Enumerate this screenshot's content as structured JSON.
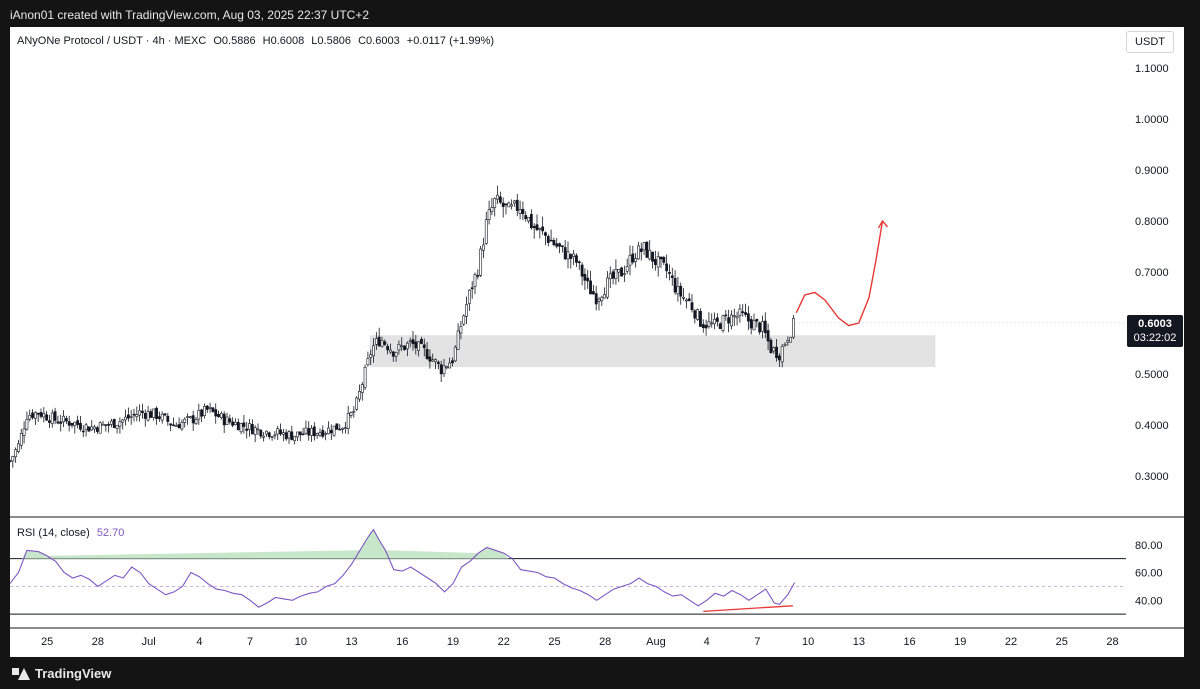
{
  "header": {
    "attribution": "iAnon01 created with TradingView.com, Aug 03, 2025 22:37 UTC+2"
  },
  "legend": {
    "symbol": "ANyONe Protocol / USDT · 4h · MEXC",
    "open": "O0.5886",
    "high": "H0.6008",
    "low": "L0.5806",
    "close": "C0.6003",
    "change": "+0.0117 (+1.99%)"
  },
  "currency": "USDT",
  "price_tag": {
    "price": "0.6003",
    "countdown": "03:22:02"
  },
  "rsi": {
    "label": "RSI (14, close)",
    "value": "52.70"
  },
  "footer": {
    "brand": "TradingView"
  },
  "colors": {
    "candle": "#131722",
    "rsi_line": "#7e57c2",
    "forecast": "#e53935",
    "zone": "#e3e3e3",
    "overbought_fill": "#c8e6c9"
  },
  "chart_data": [
    {
      "type": "candlestick",
      "symbol": "ANyONe Protocol / USDT",
      "timeframe": "4h",
      "y_axis_labels": [
        "1.1000",
        "1.0000",
        "0.9000",
        "0.8000",
        "0.7000",
        "0.6000",
        "0.5000",
        "0.4000",
        "0.3000"
      ],
      "ylim": [
        0.22,
        1.18
      ],
      "x_axis_labels": [
        "25",
        "28",
        "Jul",
        "4",
        "7",
        "10",
        "13",
        "16",
        "19",
        "22",
        "25",
        "28",
        "Aug",
        "4",
        "7",
        "10",
        "13",
        "16",
        "19",
        "22",
        "25",
        "28"
      ],
      "xlim": [
        22.8,
        88.8
      ],
      "close_path": [
        [
          22.8,
          0.33
        ],
        [
          23.3,
          0.36
        ],
        [
          23.8,
          0.42
        ],
        [
          24.5,
          0.425
        ],
        [
          25.5,
          0.41
        ],
        [
          26.5,
          0.405
        ],
        [
          27.5,
          0.395
        ],
        [
          28.5,
          0.4
        ],
        [
          29.5,
          0.41
        ],
        [
          30.5,
          0.425
        ],
        [
          31.5,
          0.42
        ],
        [
          32.5,
          0.4
        ],
        [
          33.5,
          0.41
        ],
        [
          34.5,
          0.43
        ],
        [
          35.5,
          0.41
        ],
        [
          36.5,
          0.4
        ],
        [
          37.5,
          0.39
        ],
        [
          38.5,
          0.385
        ],
        [
          39.5,
          0.38
        ],
        [
          40.5,
          0.385
        ],
        [
          41.5,
          0.39
        ],
        [
          42.5,
          0.4
        ],
        [
          43.2,
          0.43
        ],
        [
          43.7,
          0.49
        ],
        [
          44.2,
          0.55
        ],
        [
          44.7,
          0.57
        ],
        [
          45.5,
          0.545
        ],
        [
          46.5,
          0.56
        ],
        [
          47.5,
          0.54
        ],
        [
          48.3,
          0.51
        ],
        [
          49,
          0.53
        ],
        [
          49.5,
          0.6
        ],
        [
          50,
          0.66
        ],
        [
          50.5,
          0.71
        ],
        [
          51,
          0.8
        ],
        [
          51.5,
          0.84
        ],
        [
          52.3,
          0.82
        ],
        [
          53,
          0.83
        ],
        [
          53.7,
          0.79
        ],
        [
          54.5,
          0.77
        ],
        [
          55.5,
          0.74
        ],
        [
          56.3,
          0.72
        ],
        [
          57,
          0.67
        ],
        [
          57.5,
          0.65
        ],
        [
          58.2,
          0.68
        ],
        [
          59,
          0.7
        ],
        [
          59.7,
          0.735
        ],
        [
          60.3,
          0.745
        ],
        [
          61,
          0.72
        ],
        [
          61.7,
          0.7
        ],
        [
          62.3,
          0.66
        ],
        [
          63,
          0.64
        ],
        [
          63.7,
          0.6
        ],
        [
          64.5,
          0.595
        ],
        [
          65.3,
          0.61
        ],
        [
          66,
          0.615
        ],
        [
          66.7,
          0.6
        ],
        [
          67.3,
          0.59
        ],
        [
          67.8,
          0.55
        ],
        [
          68.3,
          0.54
        ],
        [
          68.8,
          0.575
        ],
        [
          69.2,
          0.6
        ]
      ],
      "support_zone": {
        "y_range": [
          0.515,
          0.575
        ],
        "x_range": [
          44.1,
          77.5
        ]
      },
      "forecast_path": [
        [
          69.3,
          0.62
        ],
        [
          69.8,
          0.655
        ],
        [
          70.4,
          0.66
        ],
        [
          71,
          0.645
        ],
        [
          71.8,
          0.61
        ],
        [
          72.4,
          0.595
        ],
        [
          73,
          0.6
        ],
        [
          73.6,
          0.65
        ],
        [
          74,
          0.72
        ],
        [
          74.4,
          0.8
        ]
      ],
      "last_price": 0.6003
    },
    {
      "type": "line",
      "title": "RSI (14, close)",
      "y_axis_labels": [
        "80.00",
        "60.00",
        "40.00"
      ],
      "ylim": [
        20,
        100
      ],
      "reference_lines": [
        70,
        50,
        30
      ],
      "series": [
        {
          "name": "RSI (14, close)",
          "points": [
            [
              22.8,
              52
            ],
            [
              23.3,
              60
            ],
            [
              23.8,
              76
            ],
            [
              24.5,
              75
            ],
            [
              25,
              72
            ],
            [
              25.5,
              68
            ],
            [
              26,
              60
            ],
            [
              26.5,
              56
            ],
            [
              27,
              58
            ],
            [
              27.5,
              55
            ],
            [
              28,
              50
            ],
            [
              28.5,
              54
            ],
            [
              29,
              58
            ],
            [
              29.5,
              56
            ],
            [
              30,
              64
            ],
            [
              30.5,
              60
            ],
            [
              31,
              52
            ],
            [
              31.5,
              48
            ],
            [
              32,
              44
            ],
            [
              32.5,
              46
            ],
            [
              33,
              50
            ],
            [
              33.5,
              60
            ],
            [
              34,
              57
            ],
            [
              34.5,
              52
            ],
            [
              35,
              48
            ],
            [
              35.5,
              47
            ],
            [
              36,
              45
            ],
            [
              36.5,
              44
            ],
            [
              37,
              40
            ],
            [
              37.5,
              35
            ],
            [
              38,
              38
            ],
            [
              38.5,
              42
            ],
            [
              39,
              41
            ],
            [
              39.5,
              40
            ],
            [
              40,
              43
            ],
            [
              40.5,
              45
            ],
            [
              41,
              46
            ],
            [
              41.5,
              50
            ],
            [
              42,
              52
            ],
            [
              42.5,
              58
            ],
            [
              43,
              66
            ],
            [
              43.5,
              76
            ],
            [
              44,
              86
            ],
            [
              44.3,
              91
            ],
            [
              44.6,
              84
            ],
            [
              45,
              76
            ],
            [
              45.5,
              62
            ],
            [
              46,
              61
            ],
            [
              46.5,
              64
            ],
            [
              47,
              60
            ],
            [
              47.5,
              56
            ],
            [
              48,
              52
            ],
            [
              48.5,
              46
            ],
            [
              49,
              52
            ],
            [
              49.5,
              64
            ],
            [
              50,
              68
            ],
            [
              50.5,
              74
            ],
            [
              51,
              78
            ],
            [
              51.5,
              76
            ],
            [
              52,
              74
            ],
            [
              52.5,
              70
            ],
            [
              53,
              62
            ],
            [
              53.5,
              61
            ],
            [
              54,
              60
            ],
            [
              54.5,
              57
            ],
            [
              55,
              56
            ],
            [
              55.5,
              52
            ],
            [
              56,
              49
            ],
            [
              56.5,
              47
            ],
            [
              57,
              44
            ],
            [
              57.5,
              40
            ],
            [
              58,
              44
            ],
            [
              58.5,
              48
            ],
            [
              59,
              50
            ],
            [
              59.5,
              52
            ],
            [
              60,
              56
            ],
            [
              60.5,
              52
            ],
            [
              61,
              50
            ],
            [
              61.5,
              46
            ],
            [
              62,
              43
            ],
            [
              62.5,
              44
            ],
            [
              63,
              40
            ],
            [
              63.5,
              36
            ],
            [
              64,
              40
            ],
            [
              64.5,
              45
            ],
            [
              65,
              43
            ],
            [
              65.5,
              47
            ],
            [
              66,
              44
            ],
            [
              66.5,
              40
            ],
            [
              67,
              44
            ],
            [
              67.5,
              48
            ],
            [
              68,
              38
            ],
            [
              68.3,
              37
            ],
            [
              68.8,
              44
            ],
            [
              69.2,
              52.7
            ]
          ]
        }
      ],
      "divergence_line": [
        [
          63.8,
          32
        ],
        [
          69.1,
          36
        ]
      ]
    }
  ]
}
